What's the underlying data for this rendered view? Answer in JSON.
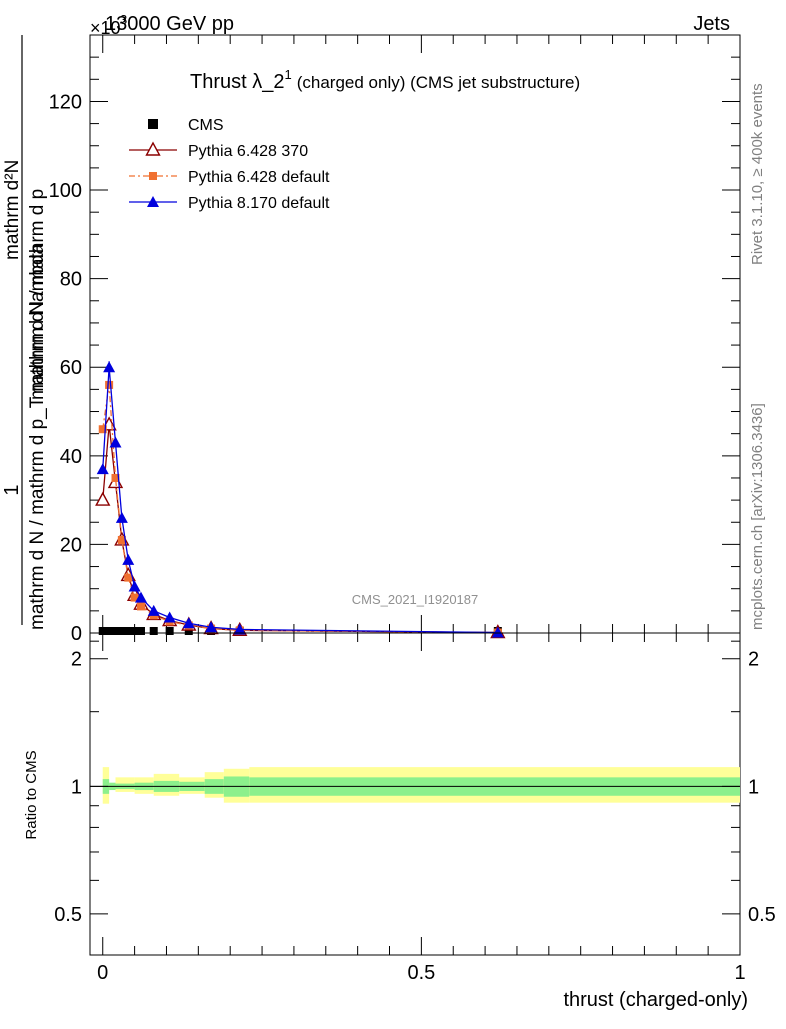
{
  "header": {
    "energy": "13000 GeV pp",
    "process": "Jets",
    "scale_exp": "×10",
    "scale_sup": "3"
  },
  "side_labels": {
    "rivet": "Rivet 3.1.10, ≥ 400k events",
    "mcplots": "mcplots.cern.ch [arXiv:1306.3436]"
  },
  "watermark": "CMS_2021_I1920187",
  "colors": {
    "cms": "#000000",
    "p6_370": "#8b0000",
    "p6_default": "#f07030",
    "p8_default": "#0000dd",
    "band_outer": "#ffff99",
    "band_inner": "#8cf08c"
  },
  "chart_data": [
    {
      "type": "line",
      "panel": "main",
      "title_main": "Thrust λ_2",
      "title_sup": "1",
      "title_rest": "(charged only) (CMS jet substructure)",
      "ylabel_top": "1",
      "ylabel_bottom": "mathrm d N / mathrm d p_T mathrm d lambda",
      "ylabel_numerator": "mathrm d²N",
      "ylabel_denominator": "mathrm d N / mathrm d p",
      "xlim": [
        -0.02,
        1.0
      ],
      "ylim": [
        0,
        135
      ],
      "y_ticks": [
        0,
        20,
        40,
        60,
        80,
        100,
        120
      ],
      "legend": [
        {
          "label": "CMS",
          "marker": "square"
        },
        {
          "label": "Pythia 6.428 370",
          "marker": "triangle-open"
        },
        {
          "label": "Pythia 6.428 default",
          "marker": "square-small"
        },
        {
          "label": "Pythia 8.170 default",
          "marker": "triangle"
        }
      ],
      "series": [
        {
          "name": "CMS",
          "x": [
            0.0,
            0.005,
            0.01,
            0.02,
            0.03,
            0.04,
            0.05,
            0.06,
            0.08,
            0.105,
            0.135,
            0.17,
            0.215,
            0.62
          ],
          "y": [
            0,
            0,
            0,
            0,
            0,
            0,
            0,
            0,
            0,
            0,
            0,
            0,
            0,
            0
          ]
        },
        {
          "name": "Pythia 6.428 370",
          "x": [
            0.0,
            0.01,
            0.02,
            0.03,
            0.04,
            0.05,
            0.06,
            0.08,
            0.105,
            0.135,
            0.17,
            0.215,
            0.62
          ],
          "y": [
            30,
            47,
            34,
            21,
            13,
            8.5,
            6.5,
            4.2,
            2.8,
            1.8,
            1.0,
            0.6,
            0.1
          ]
        },
        {
          "name": "Pythia 6.428 default",
          "x": [
            0.0,
            0.01,
            0.02,
            0.03,
            0.04,
            0.05,
            0.06,
            0.08,
            0.105,
            0.135,
            0.17,
            0.215,
            0.62
          ],
          "y": [
            46,
            56,
            35,
            21,
            12.5,
            8,
            6,
            4,
            2.6,
            1.7,
            1.0,
            0.6,
            0.1
          ]
        },
        {
          "name": "Pythia 8.170 default",
          "x": [
            0.0,
            0.01,
            0.02,
            0.03,
            0.04,
            0.05,
            0.06,
            0.08,
            0.105,
            0.135,
            0.17,
            0.215,
            0.62
          ],
          "y": [
            37,
            60,
            43,
            26,
            16.5,
            10.5,
            8,
            5,
            3.5,
            2.2,
            1.3,
            0.8,
            0.1
          ]
        }
      ]
    },
    {
      "type": "area",
      "panel": "ratio",
      "ylabel": "Ratio to CMS",
      "xlabel": "thrust (charged-only)",
      "xlim": [
        -0.02,
        1.0
      ],
      "ylim": [
        0.4,
        2.3
      ],
      "y_ticks": [
        0.5,
        1,
        2
      ],
      "x_ticks": [
        0,
        0.5,
        1
      ],
      "bins": [
        0.0,
        0.01,
        0.02,
        0.05,
        0.08,
        0.12,
        0.16,
        0.19,
        0.23,
        1.0
      ],
      "inner_band": [
        [
          0.96,
          1.04
        ],
        [
          0.98,
          1.02
        ],
        [
          0.985,
          1.015
        ],
        [
          0.98,
          1.02
        ],
        [
          0.97,
          1.03
        ],
        [
          0.975,
          1.025
        ],
        [
          0.96,
          1.04
        ],
        [
          0.945,
          1.055
        ],
        [
          0.95,
          1.05
        ]
      ],
      "outer_band": [
        [
          0.91,
          1.11
        ],
        [
          0.985,
          1.015
        ],
        [
          0.97,
          1.05
        ],
        [
          0.96,
          1.05
        ],
        [
          0.95,
          1.07
        ],
        [
          0.96,
          1.05
        ],
        [
          0.94,
          1.08
        ],
        [
          0.915,
          1.1
        ],
        [
          0.915,
          1.11
        ]
      ],
      "reference": 1
    }
  ]
}
